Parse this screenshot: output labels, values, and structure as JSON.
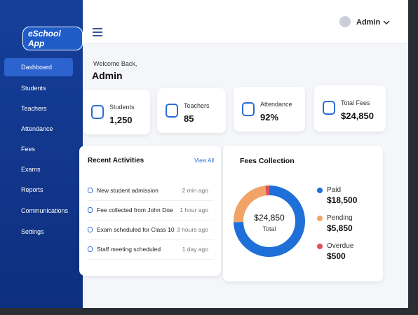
{
  "sidebar": {
    "logo": "eSchool App",
    "nav": [
      "Dashboard",
      "Students",
      "Teachers",
      "Attendance",
      "Fees",
      "Exams",
      "Reports",
      "Communications",
      "Settings"
    ]
  },
  "topbar": {
    "user": "Admin"
  },
  "welcome": {
    "greeting": "Welcome Back,",
    "name": "Admin"
  },
  "stats": [
    {
      "label": "Students",
      "value": "1,250"
    },
    {
      "label": "Teachers",
      "value": "85"
    },
    {
      "label": "Attendance",
      "value": "92%"
    },
    {
      "label": "Total Fees",
      "value": "$24,850"
    }
  ],
  "activities": {
    "title": "Recent Activities",
    "link": "View All",
    "items": [
      {
        "text": "New student admission",
        "time": "2 min ago"
      },
      {
        "text": "Fee collected from John Doe",
        "time": "1 hour ago"
      },
      {
        "text": "Exam scheduled for Class 10",
        "time": "3 hours ago"
      },
      {
        "text": "Staff meeting scheduled",
        "time": "1 day ago"
      }
    ]
  },
  "fees": {
    "title": "Fees Collection",
    "total": "$24,850",
    "total_caption": "Total",
    "items": [
      {
        "name": "Paid",
        "value": 18500,
        "label": "$18,500",
        "color": "#1f6fd8"
      },
      {
        "name": "Pending",
        "value": 5850,
        "label": "$5,850",
        "color": "#f2a468"
      },
      {
        "name": "Overdue",
        "value": 500,
        "label": "$500",
        "color": "#e0505a"
      }
    ]
  }
}
